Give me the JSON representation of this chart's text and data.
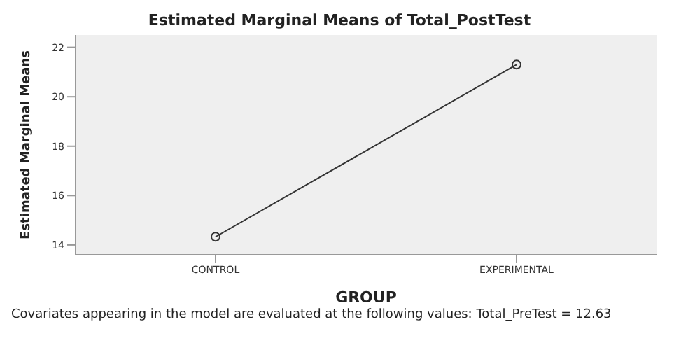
{
  "chart_data": {
    "type": "line",
    "title": "Estimated Marginal Means of Total_PostTest",
    "xlabel": "GROUP",
    "ylabel": "Estimated Marginal Means",
    "categories": [
      "CONTROL",
      "EXPERIMENTAL"
    ],
    "series": [
      {
        "color": "#333333",
        "values": [
          14.33,
          21.3
        ]
      }
    ],
    "ylim": [
      13.6,
      22.5
    ],
    "yticks": [
      14,
      16,
      18,
      20,
      22
    ],
    "marker": "circle",
    "line_style": "solid",
    "annotations": [
      "Covariates appearing in the model are evaluated at the following values: Total_PreTest = 12.63"
    ]
  }
}
